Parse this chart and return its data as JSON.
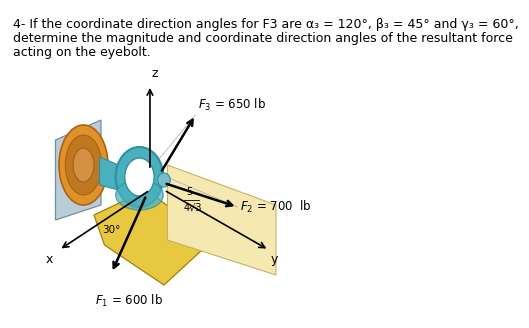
{
  "title_line1": "4- If the coordinate direction angles for F3 are α₃ = 120°, β₃ = 45° and γ₃ = 60°,",
  "title_line2": "determine the magnitude and coordinate direction angles of the resultant force",
  "title_line3": "acting on the eyebolt.",
  "bg_color": "#ffffff",
  "text_color": "#000000",
  "F1_label": "F₁ = 600 lb",
  "F2_label": "F₂ = 700  lb",
  "F3_label": "F₃ = 650 lb",
  "angle_label": "30°",
  "ratio_top": "5",
  "ratio_bot": "4√3",
  "axis_x": "x",
  "axis_y": "y",
  "axis_z": "z",
  "eyebolt_color": "#4ab0be",
  "eyebolt_ring_color": "#2e8fa0",
  "wall_color": "#b8cdd8",
  "wall_dot_color": "#7a8fa0",
  "orange_color": "#e0922a",
  "orange_dark": "#b06010",
  "teal_cone": "#4ab0be",
  "floor_color": "#e8c840",
  "floor_edge": "#a08010",
  "yz_plane_color": "#f5e8b0",
  "yz_plane_edge": "#c8b060",
  "title_fontsize": 9.0,
  "diagram_fontsize": 8.5,
  "ox": 210,
  "oy": 175
}
